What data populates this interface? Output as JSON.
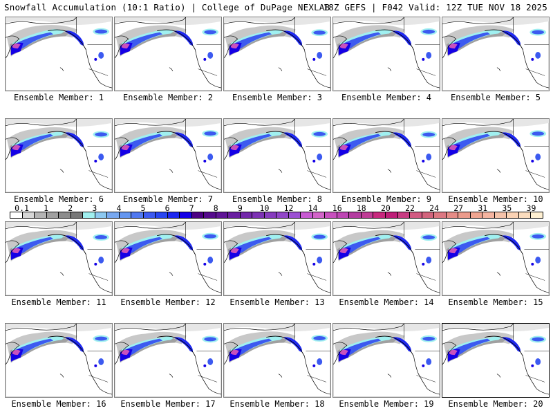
{
  "header": {
    "title_left": "Snowfall Accumulation (10:1 Ratio) | College of DuPage NEXLAB",
    "title_right": "18Z GEFS | F042 Valid: 12Z TUE NOV 18 2025"
  },
  "panels": [
    {
      "label": "Ensemble Member: 1"
    },
    {
      "label": "Ensemble Member: 2"
    },
    {
      "label": "Ensemble Member: 3"
    },
    {
      "label": "Ensemble Member: 4"
    },
    {
      "label": "Ensemble Member: 5"
    },
    {
      "label": "Ensemble Member: 6"
    },
    {
      "label": "Ensemble Member: 7"
    },
    {
      "label": "Ensemble Member: 8"
    },
    {
      "label": "Ensemble Member: 9"
    },
    {
      "label": "Ensemble Member: 10"
    },
    {
      "label": "Ensemble Member: 11"
    },
    {
      "label": "Ensemble Member: 12"
    },
    {
      "label": "Ensemble Member: 13"
    },
    {
      "label": "Ensemble Member: 14"
    },
    {
      "label": "Ensemble Member: 15"
    },
    {
      "label": "Ensemble Member: 16"
    },
    {
      "label": "Ensemble Member: 17"
    },
    {
      "label": "Ensemble Member: 18"
    },
    {
      "label": "Ensemble Member: 19"
    },
    {
      "label": "Ensemble Member: 20",
      "selected": true
    }
  ],
  "colorbar": {
    "labels": [
      "0.1",
      "1",
      "2",
      "3",
      "4",
      "5",
      "6",
      "7",
      "8",
      "9",
      "10",
      "12",
      "14",
      "16",
      "18",
      "20",
      "22",
      "24",
      "27",
      "31",
      "35",
      "39"
    ],
    "colors": [
      "#ffffff",
      "#d6d6d6",
      "#b4b4b4",
      "#a0a0a0",
      "#8c8c8c",
      "#787878",
      "#a0f0f0",
      "#8cc8f0",
      "#78a8f0",
      "#6496f0",
      "#5078f0",
      "#3c5af0",
      "#2846f0",
      "#1e28f0",
      "#1400e6",
      "#4b0082",
      "#550a8c",
      "#5f1496",
      "#691ea0",
      "#7328aa",
      "#7d32b4",
      "#873cbe",
      "#9146c8",
      "#9b50d2",
      "#c85ad2",
      "#d264c8",
      "#c850be",
      "#be46b4",
      "#b43ca0",
      "#c03c96",
      "#c8287e",
      "#be1e78",
      "#c83c82",
      "#d25a82",
      "#d2647d",
      "#dc7882",
      "#e68c87",
      "#eb9b8c",
      "#f0a591",
      "#f5b4a0",
      "#f5c3aa",
      "#fad2b4",
      "#fadcbe",
      "#fff0d2"
    ]
  },
  "map_legend": {
    "low_gray": "#c8c8c8",
    "mid_gray": "#a0a0a0",
    "cyan": "#a0f0f0",
    "blue": "#3c5af0",
    "dark_blue": "#1400e6",
    "magenta": "#c850be",
    "coast": "#000000"
  }
}
